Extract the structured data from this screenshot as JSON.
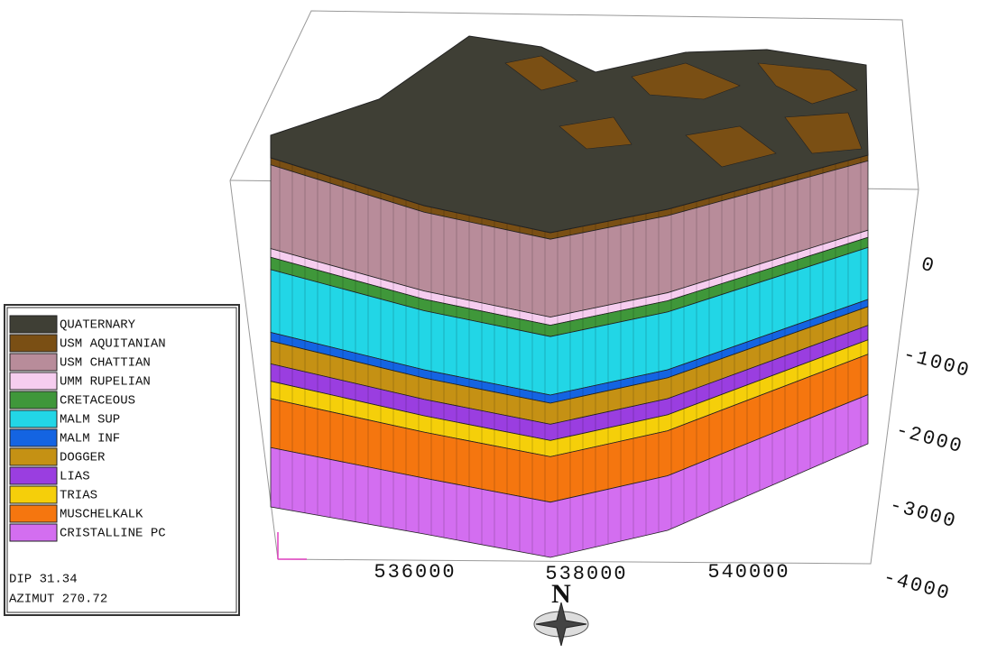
{
  "legend": {
    "items": [
      {
        "name": "QUATERNARY",
        "color": "#3f3f35"
      },
      {
        "name": "USM AQUITANIAN",
        "color": "#7a4f14"
      },
      {
        "name": "USM CHATTIAN",
        "color": "#b88c9a"
      },
      {
        "name": "UMM RUPELIAN",
        "color": "#f6cdef"
      },
      {
        "name": "CRETACEOUS",
        "color": "#3f973a"
      },
      {
        "name": "MALM SUP",
        "color": "#22d6e6"
      },
      {
        "name": "MALM INF",
        "color": "#1464e2"
      },
      {
        "name": "DOGGER",
        "color": "#c59114"
      },
      {
        "name": "LIAS",
        "color": "#9a3ee0"
      },
      {
        "name": "TRIAS",
        "color": "#f5cf0a"
      },
      {
        "name": "MUSCHELKALK",
        "color": "#f5760f"
      },
      {
        "name": "CRISTALLINE PC",
        "color": "#d36ef0"
      }
    ],
    "view": [
      "DIP 31.34",
      "AZIMUT 270.72"
    ]
  },
  "x_axis_labels": [
    "536000",
    "538000",
    "540000"
  ],
  "depth_labels": [
    "0",
    "-1000",
    "-2000",
    "-3000",
    "-4000"
  ],
  "north_label": "N"
}
